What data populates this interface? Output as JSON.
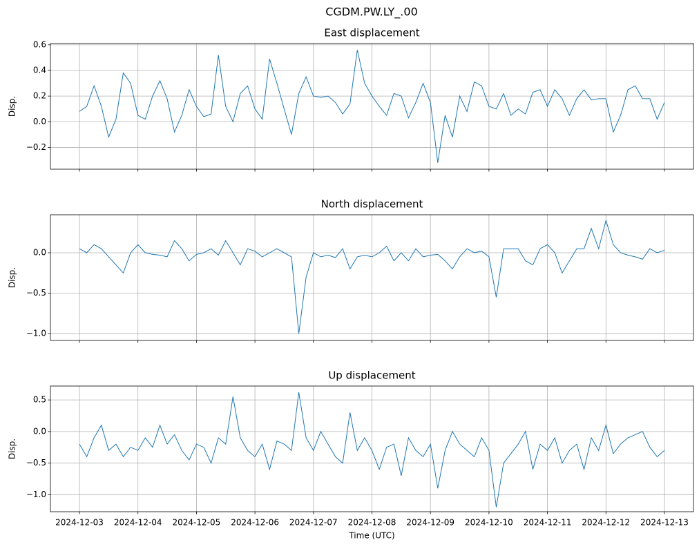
{
  "title": "CGDM.PW.LY_.00",
  "chart_data": [
    {
      "type": "line",
      "title": "East displacement",
      "ylabel": "Disp.",
      "color": "#1f77b4",
      "grid": true,
      "x": [
        "2024-12-03T00:00",
        "2024-12-03T03:00",
        "2024-12-03T06:00",
        "2024-12-03T09:00",
        "2024-12-03T12:00",
        "2024-12-03T15:00",
        "2024-12-03T18:00",
        "2024-12-03T21:00",
        "2024-12-04T00:00",
        "2024-12-04T03:00",
        "2024-12-04T06:00",
        "2024-12-04T09:00",
        "2024-12-04T12:00",
        "2024-12-04T15:00",
        "2024-12-04T18:00",
        "2024-12-04T21:00",
        "2024-12-05T00:00",
        "2024-12-05T03:00",
        "2024-12-05T06:00",
        "2024-12-05T09:00",
        "2024-12-05T12:00",
        "2024-12-05T15:00",
        "2024-12-05T18:00",
        "2024-12-05T21:00",
        "2024-12-06T00:00",
        "2024-12-06T03:00",
        "2024-12-06T06:00",
        "2024-12-06T09:00",
        "2024-12-06T12:00",
        "2024-12-06T15:00",
        "2024-12-06T18:00",
        "2024-12-06T21:00",
        "2024-12-07T00:00",
        "2024-12-07T03:00",
        "2024-12-07T06:00",
        "2024-12-07T09:00",
        "2024-12-07T12:00",
        "2024-12-07T15:00",
        "2024-12-07T18:00",
        "2024-12-07T21:00",
        "2024-12-08T00:00",
        "2024-12-08T03:00",
        "2024-12-08T06:00",
        "2024-12-08T09:00",
        "2024-12-08T12:00",
        "2024-12-08T15:00",
        "2024-12-08T18:00",
        "2024-12-08T21:00",
        "2024-12-09T00:00",
        "2024-12-09T03:00",
        "2024-12-09T06:00",
        "2024-12-09T09:00",
        "2024-12-09T12:00",
        "2024-12-09T15:00",
        "2024-12-09T18:00",
        "2024-12-09T21:00",
        "2024-12-10T00:00",
        "2024-12-10T03:00",
        "2024-12-10T06:00",
        "2024-12-10T09:00",
        "2024-12-10T12:00",
        "2024-12-10T15:00",
        "2024-12-10T18:00",
        "2024-12-10T21:00",
        "2024-12-11T00:00",
        "2024-12-11T03:00",
        "2024-12-11T06:00",
        "2024-12-11T09:00",
        "2024-12-11T12:00",
        "2024-12-11T15:00",
        "2024-12-11T18:00",
        "2024-12-11T21:00",
        "2024-12-12T00:00",
        "2024-12-12T03:00",
        "2024-12-12T06:00",
        "2024-12-12T09:00",
        "2024-12-12T12:00",
        "2024-12-12T15:00",
        "2024-12-12T18:00",
        "2024-12-12T21:00",
        "2024-12-13T00:00"
      ],
      "values": [
        0.08,
        0.12,
        0.28,
        0.12,
        -0.12,
        0.02,
        0.38,
        0.3,
        0.05,
        0.02,
        0.2,
        0.32,
        0.18,
        -0.08,
        0.05,
        0.25,
        0.12,
        0.04,
        0.06,
        0.52,
        0.12,
        0.0,
        0.22,
        0.28,
        0.1,
        0.02,
        0.49,
        0.3,
        0.1,
        -0.1,
        0.22,
        0.35,
        0.2,
        0.19,
        0.2,
        0.15,
        0.06,
        0.14,
        0.56,
        0.3,
        0.2,
        0.12,
        0.05,
        0.22,
        0.2,
        0.03,
        0.15,
        0.3,
        0.15,
        -0.32,
        0.05,
        -0.12,
        0.2,
        0.08,
        0.31,
        0.28,
        0.12,
        0.1,
        0.22,
        0.05,
        0.1,
        0.06,
        0.23,
        0.25,
        0.12,
        0.25,
        0.18,
        0.05,
        0.18,
        0.25,
        0.17,
        0.18,
        0.18,
        -0.08,
        0.05,
        0.25,
        0.28,
        0.18,
        0.18,
        0.02,
        0.15
      ],
      "xlim": [
        "2024-12-02T12:06",
        "2024-12-13T11:54"
      ],
      "xticks": [
        "2024-12-03",
        "2024-12-04",
        "2024-12-05",
        "2024-12-06",
        "2024-12-07",
        "2024-12-08",
        "2024-12-09",
        "2024-12-10",
        "2024-12-11",
        "2024-12-12",
        "2024-12-13"
      ],
      "ylim": [
        -0.37,
        0.61
      ],
      "yticks": [
        {
          "value": -0.2,
          "label": "−0.2"
        },
        {
          "value": 0,
          "label": "0.0"
        },
        {
          "value": 0.2,
          "label": "0.2"
        },
        {
          "value": 0.4,
          "label": "0.4"
        },
        {
          "value": 0.6,
          "label": "0.6"
        }
      ]
    },
    {
      "type": "line",
      "title": "North displacement",
      "ylabel": "Disp.",
      "color": "#1f77b4",
      "grid": true,
      "x": [
        "2024-12-03T00:00",
        "2024-12-03T03:00",
        "2024-12-03T06:00",
        "2024-12-03T09:00",
        "2024-12-03T12:00",
        "2024-12-03T15:00",
        "2024-12-03T18:00",
        "2024-12-03T21:00",
        "2024-12-04T00:00",
        "2024-12-04T03:00",
        "2024-12-04T06:00",
        "2024-12-04T09:00",
        "2024-12-04T12:00",
        "2024-12-04T15:00",
        "2024-12-04T18:00",
        "2024-12-04T21:00",
        "2024-12-05T00:00",
        "2024-12-05T03:00",
        "2024-12-05T06:00",
        "2024-12-05T09:00",
        "2024-12-05T12:00",
        "2024-12-05T15:00",
        "2024-12-05T18:00",
        "2024-12-05T21:00",
        "2024-12-06T00:00",
        "2024-12-06T03:00",
        "2024-12-06T06:00",
        "2024-12-06T09:00",
        "2024-12-06T12:00",
        "2024-12-06T15:00",
        "2024-12-06T18:00",
        "2024-12-06T21:00",
        "2024-12-07T00:00",
        "2024-12-07T03:00",
        "2024-12-07T06:00",
        "2024-12-07T09:00",
        "2024-12-07T12:00",
        "2024-12-07T15:00",
        "2024-12-07T18:00",
        "2024-12-07T21:00",
        "2024-12-08T00:00",
        "2024-12-08T03:00",
        "2024-12-08T06:00",
        "2024-12-08T09:00",
        "2024-12-08T12:00",
        "2024-12-08T15:00",
        "2024-12-08T18:00",
        "2024-12-08T21:00",
        "2024-12-09T00:00",
        "2024-12-09T03:00",
        "2024-12-09T06:00",
        "2024-12-09T09:00",
        "2024-12-09T12:00",
        "2024-12-09T15:00",
        "2024-12-09T18:00",
        "2024-12-09T21:00",
        "2024-12-10T00:00",
        "2024-12-10T03:00",
        "2024-12-10T06:00",
        "2024-12-10T09:00",
        "2024-12-10T12:00",
        "2024-12-10T15:00",
        "2024-12-10T18:00",
        "2024-12-10T21:00",
        "2024-12-11T00:00",
        "2024-12-11T03:00",
        "2024-12-11T06:00",
        "2024-12-11T09:00",
        "2024-12-11T12:00",
        "2024-12-11T15:00",
        "2024-12-11T18:00",
        "2024-12-11T21:00",
        "2024-12-12T00:00",
        "2024-12-12T03:00",
        "2024-12-12T06:00",
        "2024-12-12T09:00",
        "2024-12-12T12:00",
        "2024-12-12T15:00",
        "2024-12-12T18:00",
        "2024-12-12T21:00",
        "2024-12-13T00:00"
      ],
      "values": [
        0.05,
        0.0,
        0.1,
        0.05,
        -0.05,
        -0.15,
        -0.25,
        0.0,
        0.1,
        0.0,
        -0.02,
        -0.03,
        -0.05,
        0.15,
        0.05,
        -0.1,
        -0.02,
        0.0,
        0.05,
        -0.03,
        0.15,
        0.0,
        -0.15,
        0.05,
        0.02,
        -0.05,
        0.0,
        0.05,
        0.0,
        -0.05,
        -1.0,
        -0.3,
        0.0,
        -0.05,
        -0.03,
        -0.06,
        0.05,
        -0.2,
        -0.05,
        -0.03,
        -0.05,
        0.0,
        0.08,
        -0.1,
        0.0,
        -0.1,
        0.05,
        -0.05,
        -0.03,
        -0.02,
        -0.1,
        -0.2,
        -0.05,
        0.05,
        0.0,
        0.02,
        -0.05,
        -0.55,
        0.05,
        0.05,
        0.05,
        -0.1,
        -0.15,
        0.05,
        0.1,
        0.0,
        -0.25,
        -0.1,
        0.05,
        0.05,
        0.3,
        0.05,
        0.4,
        0.1,
        0.0,
        -0.03,
        -0.05,
        -0.08,
        0.05,
        0.0,
        0.03
      ],
      "xlim": [
        "2024-12-02T12:06",
        "2024-12-13T11:54"
      ],
      "xticks": [
        "2024-12-03",
        "2024-12-04",
        "2024-12-05",
        "2024-12-06",
        "2024-12-07",
        "2024-12-08",
        "2024-12-09",
        "2024-12-10",
        "2024-12-11",
        "2024-12-12",
        "2024-12-13"
      ],
      "ylim": [
        -1.085,
        0.47
      ],
      "yticks": [
        {
          "value": -1.0,
          "label": "−1.0"
        },
        {
          "value": -0.5,
          "label": "−0.5"
        },
        {
          "value": 0,
          "label": "0.0"
        }
      ]
    },
    {
      "type": "line",
      "title": "Up displacement",
      "ylabel": "Disp.",
      "xlabel": "Time (UTC)",
      "color": "#1f77b4",
      "grid": true,
      "show_xtick_labels": true,
      "x": [
        "2024-12-03T00:00",
        "2024-12-03T03:00",
        "2024-12-03T06:00",
        "2024-12-03T09:00",
        "2024-12-03T12:00",
        "2024-12-03T15:00",
        "2024-12-03T18:00",
        "2024-12-03T21:00",
        "2024-12-04T00:00",
        "2024-12-04T03:00",
        "2024-12-04T06:00",
        "2024-12-04T09:00",
        "2024-12-04T12:00",
        "2024-12-04T15:00",
        "2024-12-04T18:00",
        "2024-12-04T21:00",
        "2024-12-05T00:00",
        "2024-12-05T03:00",
        "2024-12-05T06:00",
        "2024-12-05T09:00",
        "2024-12-05T12:00",
        "2024-12-05T15:00",
        "2024-12-05T18:00",
        "2024-12-05T21:00",
        "2024-12-06T00:00",
        "2024-12-06T03:00",
        "2024-12-06T06:00",
        "2024-12-06T09:00",
        "2024-12-06T12:00",
        "2024-12-06T15:00",
        "2024-12-06T18:00",
        "2024-12-06T21:00",
        "2024-12-07T00:00",
        "2024-12-07T03:00",
        "2024-12-07T06:00",
        "2024-12-07T09:00",
        "2024-12-07T12:00",
        "2024-12-07T15:00",
        "2024-12-07T18:00",
        "2024-12-07T21:00",
        "2024-12-08T00:00",
        "2024-12-08T03:00",
        "2024-12-08T06:00",
        "2024-12-08T09:00",
        "2024-12-08T12:00",
        "2024-12-08T15:00",
        "2024-12-08T18:00",
        "2024-12-08T21:00",
        "2024-12-09T00:00",
        "2024-12-09T03:00",
        "2024-12-09T06:00",
        "2024-12-09T09:00",
        "2024-12-09T12:00",
        "2024-12-09T15:00",
        "2024-12-09T18:00",
        "2024-12-09T21:00",
        "2024-12-10T00:00",
        "2024-12-10T03:00",
        "2024-12-10T06:00",
        "2024-12-10T09:00",
        "2024-12-10T12:00",
        "2024-12-10T15:00",
        "2024-12-10T18:00",
        "2024-12-10T21:00",
        "2024-12-11T00:00",
        "2024-12-11T03:00",
        "2024-12-11T06:00",
        "2024-12-11T09:00",
        "2024-12-11T12:00",
        "2024-12-11T15:00",
        "2024-12-11T18:00",
        "2024-12-11T21:00",
        "2024-12-12T00:00",
        "2024-12-12T03:00",
        "2024-12-12T06:00",
        "2024-12-12T09:00",
        "2024-12-12T12:00",
        "2024-12-12T15:00",
        "2024-12-12T18:00",
        "2024-12-12T21:00",
        "2024-12-13T00:00"
      ],
      "values": [
        -0.2,
        -0.4,
        -0.1,
        0.1,
        -0.3,
        -0.2,
        -0.4,
        -0.25,
        -0.3,
        -0.1,
        -0.25,
        0.1,
        -0.2,
        -0.05,
        -0.3,
        -0.45,
        -0.2,
        -0.25,
        -0.5,
        -0.1,
        -0.2,
        0.55,
        -0.1,
        -0.3,
        -0.4,
        -0.2,
        -0.6,
        -0.15,
        -0.2,
        -0.3,
        0.62,
        -0.1,
        -0.3,
        0.0,
        -0.2,
        -0.4,
        -0.5,
        0.3,
        -0.3,
        -0.1,
        -0.3,
        -0.6,
        -0.25,
        -0.2,
        -0.7,
        -0.1,
        -0.3,
        -0.4,
        -0.2,
        -0.9,
        -0.3,
        0.0,
        -0.2,
        -0.3,
        -0.4,
        -0.1,
        -0.3,
        -1.2,
        -0.5,
        -0.35,
        -0.2,
        0.0,
        -0.6,
        -0.2,
        -0.3,
        -0.1,
        -0.5,
        -0.3,
        -0.2,
        -0.6,
        -0.1,
        -0.3,
        0.1,
        -0.35,
        -0.2,
        -0.1,
        -0.05,
        0.0,
        -0.25,
        -0.4,
        -0.3
      ],
      "xlim": [
        "2024-12-02T12:06",
        "2024-12-13T11:54"
      ],
      "xticks": [
        "2024-12-03",
        "2024-12-04",
        "2024-12-05",
        "2024-12-06",
        "2024-12-07",
        "2024-12-08",
        "2024-12-09",
        "2024-12-10",
        "2024-12-11",
        "2024-12-12",
        "2024-12-13"
      ],
      "ylim": [
        -1.27,
        0.72
      ],
      "yticks": [
        {
          "value": -1.0,
          "label": "−1.0"
        },
        {
          "value": -0.5,
          "label": "−0.5"
        },
        {
          "value": 0,
          "label": "0.0"
        },
        {
          "value": 0.5,
          "label": "0.5"
        }
      ]
    }
  ]
}
